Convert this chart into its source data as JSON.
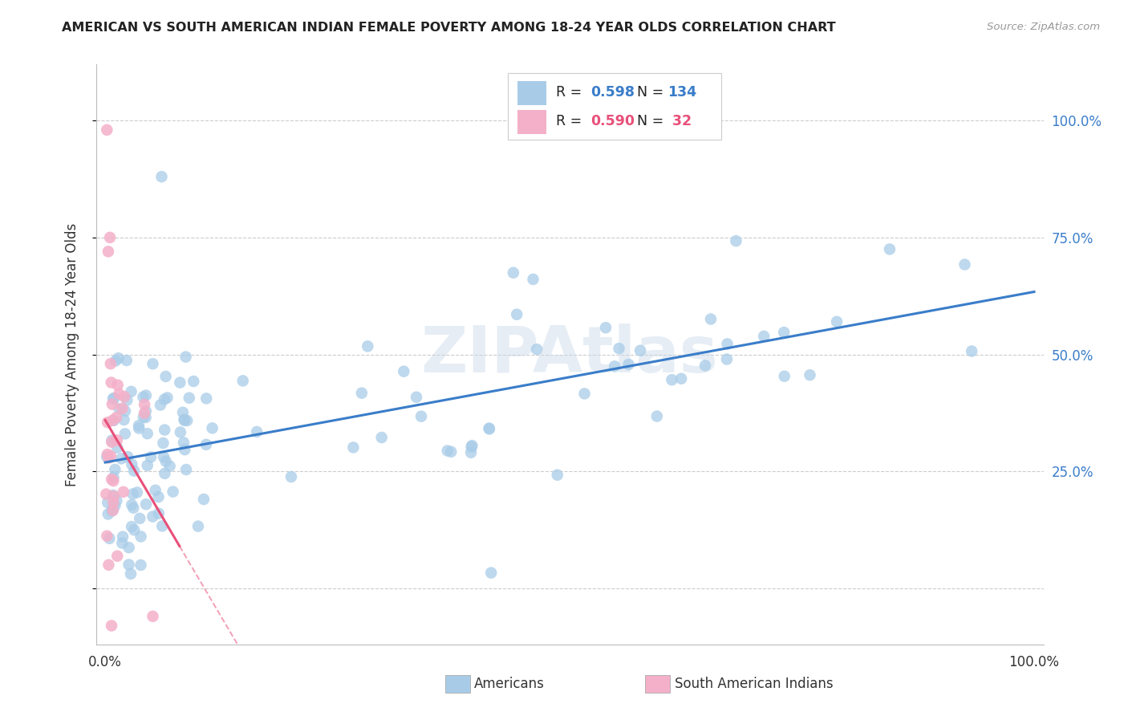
{
  "title": "AMERICAN VS SOUTH AMERICAN INDIAN FEMALE POVERTY AMONG 18-24 YEAR OLDS CORRELATION CHART",
  "source": "Source: ZipAtlas.com",
  "ylabel": "Female Poverty Among 18-24 Year Olds",
  "xlim": [
    -0.01,
    1.01
  ],
  "ylim": [
    -0.12,
    1.12
  ],
  "blue_R": 0.598,
  "blue_N": 134,
  "pink_R": 0.59,
  "pink_N": 32,
  "blue_color": "#a8cce8",
  "pink_color": "#f4b0c8",
  "blue_line_color": "#3a7dc9",
  "pink_line_color": "#e8507a",
  "grid_color": "#cccccc",
  "title_color": "#222222",
  "ylabel_color": "#333333",
  "right_axis_color": "#3a7dc9",
  "bottom_label_color": "#333333",
  "legend_text_color": "#3a7dc9",
  "legend_pink_text_color": "#e8507a",
  "watermark_color": "#c8d8ea",
  "blue_scatter_seed": 1001,
  "pink_scatter_seed": 2002
}
